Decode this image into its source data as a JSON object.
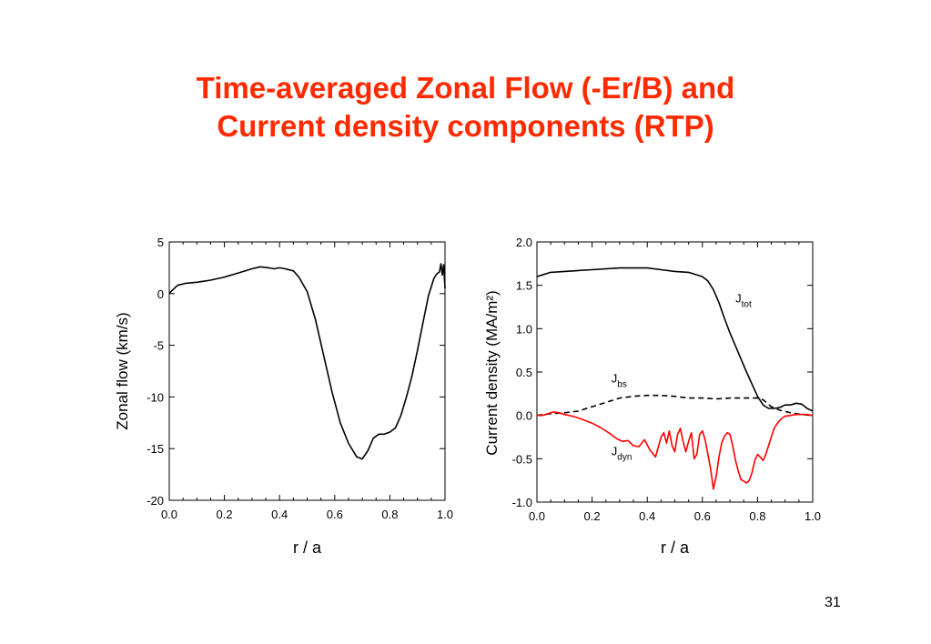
{
  "slide": {
    "title_line1": "Time-averaged Zonal Flow (-Er/B) and",
    "title_line2": "Current density components (RTP)",
    "page_number": "31",
    "title_color": "#ff2a00"
  },
  "chart_data": [
    {
      "type": "line",
      "xlabel": "r / a",
      "ylabel": "Zonal flow  (km/s)",
      "xlim": [
        0.0,
        1.0
      ],
      "ylim": [
        -20,
        5
      ],
      "xticks": [
        "0.0",
        "0.2",
        "0.4",
        "0.6",
        "0.8",
        "1.0"
      ],
      "yticks": [
        "5",
        "0",
        "-5",
        "-10",
        "-15",
        "-20"
      ],
      "grid": false,
      "series": [
        {
          "color": "#000000",
          "dash": "solid",
          "x": [
            0.0,
            0.01,
            0.03,
            0.06,
            0.1,
            0.15,
            0.2,
            0.25,
            0.3,
            0.33,
            0.36,
            0.38,
            0.4,
            0.42,
            0.45,
            0.47,
            0.5,
            0.53,
            0.56,
            0.59,
            0.62,
            0.65,
            0.68,
            0.7,
            0.72,
            0.74,
            0.76,
            0.78,
            0.8,
            0.82,
            0.84,
            0.86,
            0.88,
            0.9,
            0.92,
            0.94,
            0.96,
            0.97,
            0.98,
            0.985,
            0.99,
            0.995,
            1.0
          ],
          "y": [
            0.0,
            0.3,
            0.8,
            1.0,
            1.1,
            1.3,
            1.6,
            2.0,
            2.4,
            2.6,
            2.5,
            2.4,
            2.5,
            2.4,
            2.2,
            1.6,
            0.2,
            -2.5,
            -6.0,
            -9.5,
            -12.5,
            -14.5,
            -15.8,
            -16.0,
            -15.2,
            -14.0,
            -13.6,
            -13.6,
            -13.4,
            -13.0,
            -11.8,
            -10.0,
            -8.0,
            -5.5,
            -2.8,
            -0.2,
            1.5,
            1.9,
            2.1,
            2.9,
            1.8,
            2.8,
            0.5
          ]
        }
      ]
    },
    {
      "type": "line",
      "xlabel": "r / a",
      "ylabel": "Current density (MA/m²)",
      "xlim": [
        0.0,
        1.0
      ],
      "ylim": [
        -1.0,
        2.0
      ],
      "xticks": [
        "0.0",
        "0.2",
        "0.4",
        "0.6",
        "0.8",
        "1.0"
      ],
      "yticks": [
        "2.0",
        "1.5",
        "1.0",
        "0.5",
        "0.0",
        "-0.5",
        "-1.0"
      ],
      "grid": false,
      "annotations": [
        {
          "text": "J",
          "sub": "tot",
          "x": 0.72,
          "y": 1.3
        },
        {
          "text": "J",
          "sub": "bs",
          "x": 0.27,
          "y": 0.38
        },
        {
          "text": "J",
          "sub": "dyn",
          "x": 0.27,
          "y": -0.46
        }
      ],
      "series": [
        {
          "label": "Jtot",
          "color": "#000000",
          "dash": "solid",
          "x": [
            0.0,
            0.02,
            0.05,
            0.1,
            0.2,
            0.3,
            0.35,
            0.4,
            0.45,
            0.5,
            0.55,
            0.6,
            0.62,
            0.64,
            0.66,
            0.68,
            0.7,
            0.72,
            0.74,
            0.76,
            0.78,
            0.8,
            0.82,
            0.84,
            0.86,
            0.88,
            0.9,
            0.92,
            0.94,
            0.96,
            0.98,
            1.0
          ],
          "y": [
            1.6,
            1.62,
            1.65,
            1.66,
            1.68,
            1.7,
            1.7,
            1.7,
            1.68,
            1.66,
            1.65,
            1.6,
            1.55,
            1.45,
            1.3,
            1.12,
            0.95,
            0.8,
            0.65,
            0.5,
            0.36,
            0.22,
            0.12,
            0.08,
            0.08,
            0.09,
            0.12,
            0.12,
            0.14,
            0.13,
            0.08,
            0.05
          ]
        },
        {
          "label": "Jbs",
          "color": "#000000",
          "dash": "dashed",
          "x": [
            0.0,
            0.05,
            0.1,
            0.15,
            0.2,
            0.25,
            0.3,
            0.35,
            0.4,
            0.45,
            0.5,
            0.55,
            0.6,
            0.65,
            0.7,
            0.75,
            0.8,
            0.82,
            0.85,
            0.88,
            0.92,
            0.96,
            1.0
          ],
          "y": [
            0.0,
            0.02,
            0.03,
            0.05,
            0.1,
            0.15,
            0.2,
            0.22,
            0.23,
            0.23,
            0.22,
            0.2,
            0.2,
            0.19,
            0.2,
            0.2,
            0.2,
            0.18,
            0.1,
            0.06,
            0.03,
            0.01,
            0.0
          ]
        },
        {
          "label": "Jdyn",
          "color": "#ff0000",
          "dash": "solid",
          "x": [
            0.0,
            0.02,
            0.04,
            0.06,
            0.08,
            0.1,
            0.13,
            0.16,
            0.2,
            0.23,
            0.26,
            0.29,
            0.31,
            0.33,
            0.35,
            0.37,
            0.39,
            0.41,
            0.43,
            0.45,
            0.46,
            0.47,
            0.48,
            0.49,
            0.5,
            0.51,
            0.52,
            0.53,
            0.54,
            0.55,
            0.56,
            0.57,
            0.58,
            0.59,
            0.6,
            0.61,
            0.62,
            0.63,
            0.64,
            0.65,
            0.66,
            0.67,
            0.68,
            0.69,
            0.7,
            0.71,
            0.72,
            0.73,
            0.74,
            0.75,
            0.76,
            0.77,
            0.78,
            0.79,
            0.8,
            0.81,
            0.82,
            0.83,
            0.84,
            0.85,
            0.86,
            0.87,
            0.88,
            0.89,
            0.9,
            0.92,
            0.94,
            0.96,
            0.98,
            1.0
          ],
          "y": [
            0.0,
            0.0,
            0.02,
            0.04,
            0.03,
            0.01,
            -0.01,
            -0.04,
            -0.09,
            -0.14,
            -0.2,
            -0.27,
            -0.3,
            -0.29,
            -0.35,
            -0.36,
            -0.28,
            -0.4,
            -0.48,
            -0.25,
            -0.2,
            -0.32,
            -0.18,
            -0.35,
            -0.42,
            -0.22,
            -0.15,
            -0.3,
            -0.42,
            -0.3,
            -0.2,
            -0.5,
            -0.45,
            -0.22,
            -0.18,
            -0.28,
            -0.45,
            -0.62,
            -0.85,
            -0.7,
            -0.48,
            -0.32,
            -0.24,
            -0.2,
            -0.22,
            -0.35,
            -0.52,
            -0.64,
            -0.74,
            -0.76,
            -0.78,
            -0.75,
            -0.66,
            -0.52,
            -0.45,
            -0.48,
            -0.52,
            -0.45,
            -0.35,
            -0.25,
            -0.15,
            -0.1,
            -0.06,
            -0.03,
            -0.01,
            0.0,
            0.01,
            0.01,
            0.01,
            0.0
          ]
        }
      ]
    }
  ]
}
